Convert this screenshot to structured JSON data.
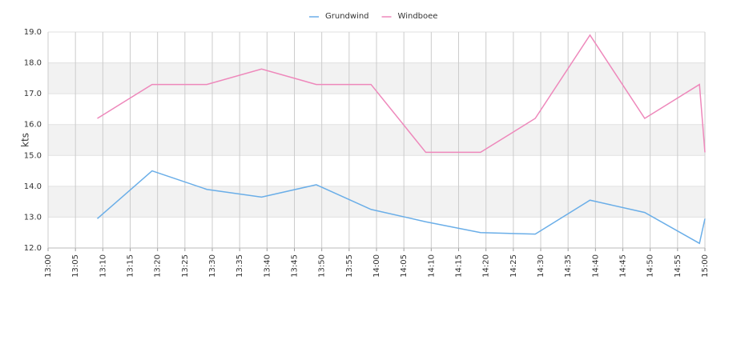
{
  "chart_data": {
    "type": "line",
    "y_label": "kts",
    "x": [
      "13:09",
      "13:19",
      "13:29",
      "13:39",
      "13:49",
      "13:59",
      "14:09",
      "14:19",
      "14:29",
      "14:39",
      "14:49",
      "14:59",
      "15:00"
    ],
    "series": [
      {
        "name": "Grundwind",
        "color": "#6aaee8",
        "values": [
          12.95,
          14.5,
          13.9,
          13.65,
          14.05,
          13.25,
          12.85,
          12.5,
          12.45,
          13.55,
          13.15,
          12.15,
          12.95
        ]
      },
      {
        "name": "Windboee",
        "color": "#ee88bb",
        "values": [
          16.2,
          17.3,
          17.3,
          17.8,
          17.3,
          17.3,
          15.1,
          15.1,
          16.2,
          18.9,
          16.2,
          17.3,
          15.1
        ]
      }
    ],
    "xlim": [
      "13:00",
      "15:00"
    ],
    "xticks": [
      "13:00",
      "13:05",
      "13:10",
      "13:15",
      "13:20",
      "13:25",
      "13:30",
      "13:35",
      "13:40",
      "13:45",
      "13:50",
      "13:55",
      "14:00",
      "14:05",
      "14:10",
      "14:15",
      "14:20",
      "14:25",
      "14:30",
      "14:35",
      "14:40",
      "14:45",
      "14:50",
      "14:55",
      "15:00"
    ],
    "ylim": [
      12,
      19
    ],
    "yticks": [
      {
        "value": 12,
        "label": "12.0"
      },
      {
        "value": 13,
        "label": "13.0"
      },
      {
        "value": 14,
        "label": "14.0"
      },
      {
        "value": 15,
        "label": "15.0"
      },
      {
        "value": 16,
        "label": "16.0"
      },
      {
        "value": 17,
        "label": "17.0"
      },
      {
        "value": 18,
        "label": "18.0"
      },
      {
        "value": 19,
        "label": "19.0"
      }
    ],
    "grid": true,
    "bands": true,
    "legend": "top"
  }
}
